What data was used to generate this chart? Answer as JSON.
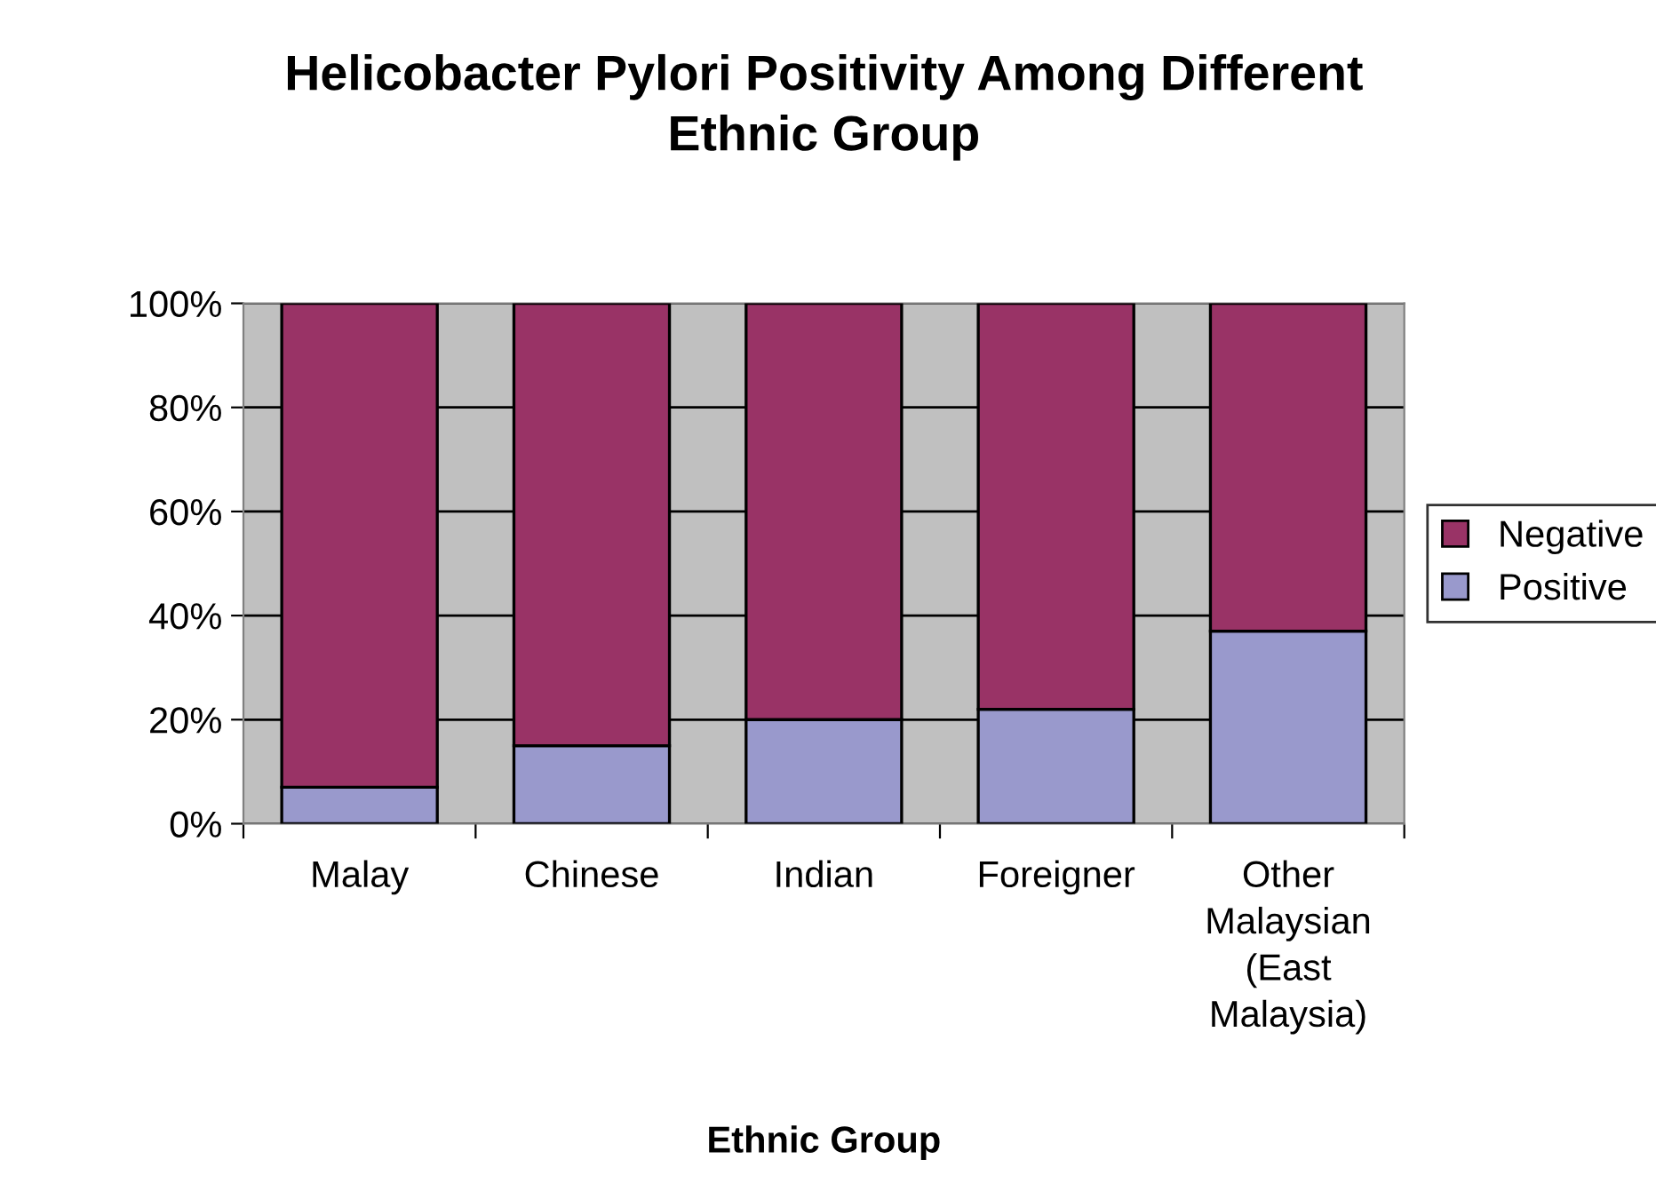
{
  "chart_data": {
    "type": "bar",
    "title": "Helicobacter Pylori Positivity Among Different\nEthnic Group",
    "xlabel": "Ethnic Group",
    "categories": [
      "Malay",
      "Chinese",
      "Indian",
      "Foreigner",
      "Other\nMalaysian\n(East\nMalaysia)"
    ],
    "stacked": true,
    "series": [
      {
        "name": "Positive",
        "color": "#9999cc",
        "values": [
          7,
          15,
          20,
          22,
          37
        ]
      },
      {
        "name": "Negative",
        "color": "#993366",
        "values": [
          93,
          85,
          80,
          78,
          63
        ]
      }
    ],
    "ylim": [
      0,
      100
    ],
    "yticks": [
      {
        "value": 0,
        "label": "0%"
      },
      {
        "value": 20,
        "label": "20%"
      },
      {
        "value": 40,
        "label": "40%"
      },
      {
        "value": 60,
        "label": "60%"
      },
      {
        "value": 80,
        "label": "80%"
      },
      {
        "value": 100,
        "label": "100%"
      }
    ],
    "grid": "y",
    "legend": "right"
  }
}
